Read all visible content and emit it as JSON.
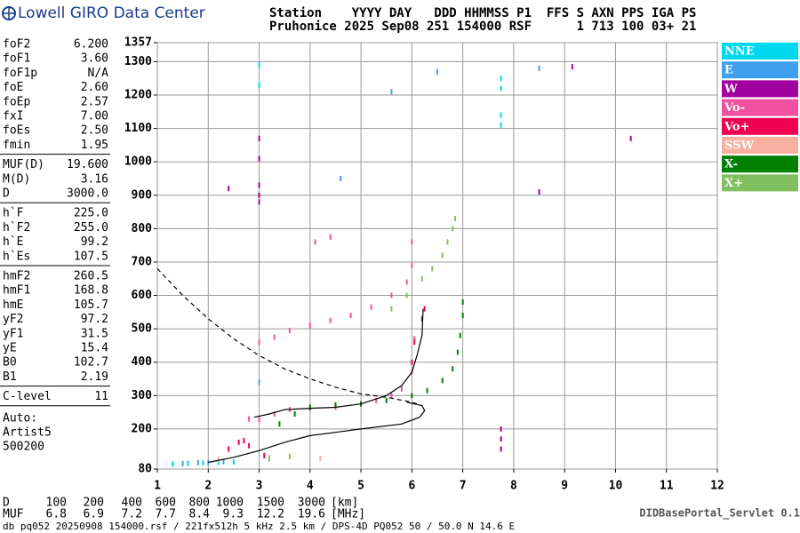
{
  "header": {
    "title": "Lowell GIRO Data Center",
    "station_row": "Station    YYYY DAY   DDD HHMMSS P1  FFS S AXN PPS IGA PS",
    "value_row": "Pruhonice 2025 Sep08 251 154000 RSF      1 713 100 03+ 21"
  },
  "parameters": [
    [
      [
        "foF2",
        "6.200"
      ],
      [
        "foF1",
        "3.60"
      ],
      [
        "foF1p",
        "N/A"
      ],
      [
        "foE",
        "2.60"
      ],
      [
        "foEp",
        "2.57"
      ],
      [
        "fxI",
        "7.00"
      ],
      [
        "foEs",
        "2.50"
      ],
      [
        "fmin",
        "1.95"
      ]
    ],
    [
      [
        "MUF(D)",
        "19.600"
      ],
      [
        "M(D)",
        "3.16"
      ],
      [
        "D",
        "3000.0"
      ]
    ],
    [
      [
        "h`F",
        "225.0"
      ],
      [
        "h`F2",
        "255.0"
      ],
      [
        "h`E",
        "99.2"
      ],
      [
        "h`Es",
        "107.5"
      ]
    ],
    [
      [
        "hmF2",
        "260.5"
      ],
      [
        "hmF1",
        "168.8"
      ],
      [
        "hmE",
        "105.7"
      ],
      [
        "yF2",
        "97.2"
      ],
      [
        "yF1",
        "31.5"
      ],
      [
        "yE",
        "15.4"
      ],
      [
        "B0",
        "102.7"
      ],
      [
        "B1",
        "2.19"
      ]
    ],
    [
      [
        "C-level",
        "11"
      ]
    ]
  ],
  "autoscaling": [
    "Auto:",
    "Artist5",
    "500200"
  ],
  "chart_data": {
    "type": "scatter",
    "xlim": [
      1,
      12
    ],
    "xticks": [
      1,
      2,
      3,
      4,
      5,
      6,
      7,
      8,
      9,
      10,
      11,
      12
    ],
    "ylim": [
      80,
      1357
    ],
    "yticks": [
      80,
      200,
      300,
      400,
      500,
      600,
      700,
      800,
      900,
      1000,
      1100,
      1200,
      1300,
      1357
    ],
    "grid": true,
    "legend": "right",
    "series": [
      {
        "name": "NNE",
        "color": "#00d8f0",
        "x": [
          1.3,
          1.6,
          1.9,
          2.2,
          2.5,
          3.0,
          3.0,
          7.75,
          7.75,
          7.75,
          7.75
        ],
        "values": [
          95,
          97,
          98,
          100,
          101,
          1230,
          1290,
          1250,
          1220,
          1140,
          1110
        ]
      },
      {
        "name": "E",
        "color": "#40a0f0",
        "x": [
          1.5,
          1.8,
          2.0,
          2.3,
          3.0,
          4.6,
          5.6,
          6.5,
          8.5
        ],
        "values": [
          96,
          99,
          100,
          102,
          340,
          950,
          1210,
          1270,
          1280
        ]
      },
      {
        "name": "W",
        "color": "#a000a0",
        "x": [
          3.0,
          3.0,
          3.0,
          3.0,
          3.0,
          2.4,
          7.75,
          7.75,
          7.75,
          8.5,
          9.15,
          10.3
        ],
        "values": [
          1070,
          1010,
          930,
          900,
          880,
          920,
          200,
          170,
          140,
          910,
          1285,
          1070
        ]
      },
      {
        "name": "Vo-",
        "color": "#f050a0",
        "x": [
          2.8,
          3.0,
          3.3,
          3.6,
          4.0,
          4.5,
          5.0,
          5.3,
          5.6,
          5.8,
          6.0,
          6.05,
          3.0,
          3.3,
          3.6,
          4.0,
          4.4,
          4.8,
          5.2,
          5.6,
          5.9,
          6.0,
          6.0,
          4.1,
          4.4
        ],
        "values": [
          230,
          228,
          245,
          258,
          262,
          265,
          275,
          285,
          300,
          320,
          370,
          470,
          460,
          475,
          495,
          510,
          525,
          540,
          565,
          600,
          640,
          690,
          760,
          760,
          775
        ]
      },
      {
        "name": "Vo+",
        "color": "#f00050",
        "x": [
          2.4,
          2.6,
          2.7,
          2.8,
          3.1,
          6.0,
          6.05,
          6.2,
          6.25
        ],
        "values": [
          140,
          160,
          165,
          150,
          120,
          400,
          460,
          530,
          560
        ]
      },
      {
        "name": "SSW",
        "color": "#f8b0a0",
        "x": [
          2.2,
          3.2,
          4.2
        ],
        "values": [
          110,
          115,
          112
        ]
      },
      {
        "name": "X-",
        "color": "#008000",
        "x": [
          3.4,
          3.7,
          4.0,
          4.5,
          5.0,
          5.5,
          6.0,
          6.3,
          6.6,
          6.8,
          6.9,
          6.95,
          7.0,
          7.0
        ],
        "values": [
          215,
          245,
          265,
          272,
          275,
          285,
          300,
          315,
          345,
          380,
          430,
          480,
          540,
          580
        ]
      },
      {
        "name": "X+",
        "color": "#80c060",
        "x": [
          3.2,
          3.6,
          5.6,
          5.9,
          6.2,
          6.4,
          6.6,
          6.7,
          6.8,
          6.85
        ],
        "values": [
          110,
          118,
          560,
          600,
          650,
          680,
          720,
          760,
          800,
          830
        ]
      },
      {
        "name": "profile",
        "color": "#000000",
        "x": [
          2.9,
          3.2,
          3.5,
          4.0,
          4.5,
          5.0,
          5.5,
          5.8,
          6.0,
          6.1,
          6.2,
          6.22
        ],
        "values": [
          235,
          245,
          258,
          262,
          265,
          275,
          300,
          330,
          370,
          420,
          480,
          560
        ]
      },
      {
        "name": "height",
        "color": "#000000",
        "x": [
          2.0,
          2.5,
          3.0,
          3.5,
          4.0,
          5.0,
          5.8,
          6.15,
          6.25,
          6.2,
          5.9
        ],
        "values": [
          100,
          115,
          135,
          160,
          180,
          200,
          215,
          235,
          255,
          270,
          280
        ]
      },
      {
        "name": "muf",
        "color": "#000000",
        "x": [
          1.0,
          1.5,
          2.0,
          2.5,
          3.0,
          3.5,
          4.0,
          4.5,
          5.0,
          5.5,
          6.0,
          6.2
        ],
        "values": [
          680,
          600,
          530,
          470,
          420,
          380,
          350,
          325,
          305,
          295,
          280,
          270
        ]
      }
    ]
  },
  "footer": {
    "d_label": "D",
    "d_values": [
      "100",
      "200",
      "400",
      "600",
      "800",
      "1000",
      "1500",
      "3000"
    ],
    "d_unit": "[km]",
    "muf_label": "MUF",
    "muf_values": [
      "6.8",
      "6.9",
      "7.2",
      "7.7",
      "8.4",
      "9.3",
      "12.2",
      "19.6"
    ],
    "muf_unit": "[MHz]",
    "servlet": "DIDBasePortal_Servlet 0.1",
    "file": "db pq052 20250908 154000.rsf / 221fx512h 5 kHz 2.5 km / DPS-4D PQ052 50 / 50.0 N 14.6 E"
  }
}
